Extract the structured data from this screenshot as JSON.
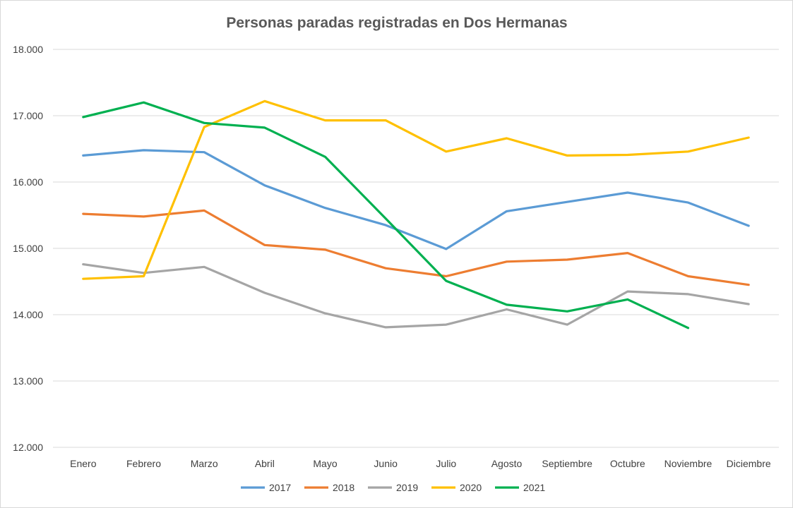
{
  "chart_data": {
    "type": "line",
    "title": "Personas paradas registradas en Dos Hermanas",
    "xlabel": "",
    "ylabel": "",
    "categories": [
      "Enero",
      "Febrero",
      "Marzo",
      "Abril",
      "Mayo",
      "Junio",
      "Julio",
      "Agosto",
      "Septiembre",
      "Octubre",
      "Noviembre",
      "Diciembre"
    ],
    "ylim": [
      12000,
      18000
    ],
    "yticks": [
      12000,
      13000,
      14000,
      15000,
      16000,
      17000,
      18000
    ],
    "ytick_labels": [
      "12.000",
      "13.000",
      "14.000",
      "15.000",
      "16.000",
      "17.000",
      "18.000"
    ],
    "grid": true,
    "legend_position": "bottom",
    "series": [
      {
        "name": "2017",
        "color": "#5b9bd5",
        "values": [
          16400,
          16480,
          16450,
          15950,
          15610,
          15350,
          14990,
          15560,
          15700,
          15840,
          15690,
          15340
        ]
      },
      {
        "name": "2018",
        "color": "#ed7d31",
        "values": [
          15520,
          15480,
          15570,
          15050,
          14980,
          14700,
          14580,
          14800,
          14830,
          14930,
          14580,
          14450
        ]
      },
      {
        "name": "2019",
        "color": "#a5a5a5",
        "values": [
          14760,
          14630,
          14720,
          14330,
          14020,
          13810,
          13850,
          14080,
          13850,
          14350,
          14310,
          14160
        ]
      },
      {
        "name": "2020",
        "color": "#ffc000",
        "values": [
          14540,
          14580,
          16830,
          17220,
          16930,
          16930,
          16460,
          16660,
          16400,
          16410,
          16460,
          16670
        ]
      },
      {
        "name": "2021",
        "color": "#00b050",
        "values": [
          16980,
          17200,
          16890,
          16820,
          16380,
          15450,
          14510,
          14150,
          14050,
          14230,
          13800,
          null
        ]
      }
    ]
  }
}
